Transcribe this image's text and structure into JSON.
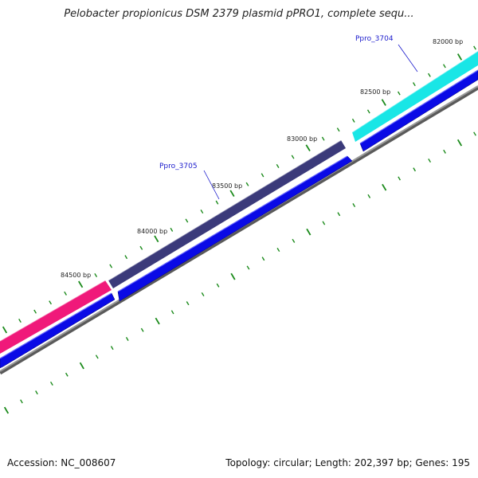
{
  "title": "Pelobacter propionicus DSM 2379 plasmid pPRO1, complete sequ...",
  "footer": {
    "accession": "Accession: NC_008607",
    "summary": "Topology: circular; Length: 202,397 bp; Genes: 195"
  },
  "ticks": {
    "bp_labels": [
      "82000 bp",
      "82500 bp",
      "83000 bp",
      "83500 bp",
      "84000 bp",
      "84500 bp"
    ]
  },
  "genes": [
    {
      "name": "Ppro_3704",
      "color": "#19e6e6"
    },
    {
      "name": "Ppro_3705",
      "color": "#3b3a7a"
    },
    {
      "name": "",
      "color": "#f0197a"
    }
  ],
  "colors": {
    "strand": "#0a0ae6",
    "backbone": "#808080",
    "tick": "#1a8a1a"
  }
}
